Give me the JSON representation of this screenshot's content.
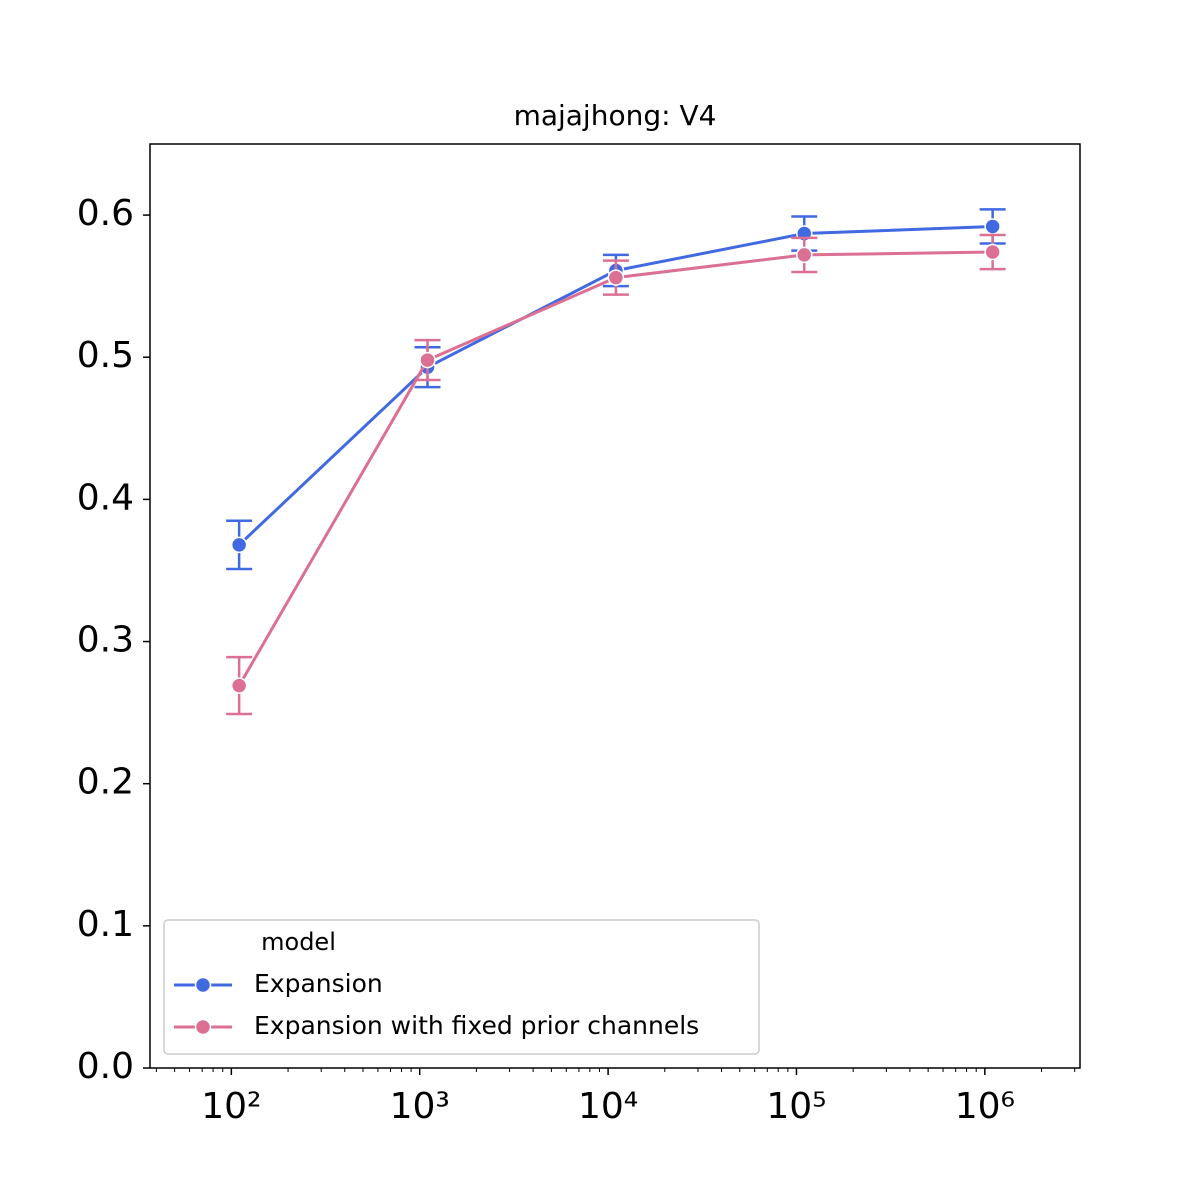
{
  "chart_data": {
    "type": "line",
    "title": "majajhong: V4",
    "x": [
      110,
      1100,
      11000,
      110000,
      1100000
    ],
    "xscale": "log",
    "xlim": [
      37,
      3200000
    ],
    "xticks": [
      {
        "value": 100,
        "label": "10²"
      },
      {
        "value": 1000,
        "label": "10³"
      },
      {
        "value": 10000,
        "label": "10⁴"
      },
      {
        "value": 100000,
        "label": "10⁵"
      },
      {
        "value": 1000000,
        "label": "10⁶"
      }
    ],
    "ylim": [
      0,
      0.65
    ],
    "yticks": [
      {
        "value": 0,
        "label": "0.0"
      },
      0.1,
      0.2,
      0.3,
      0.4,
      0.5,
      0.6
    ],
    "legend_title": "model",
    "legend_position": "lower left",
    "series": [
      {
        "name": "Expansion",
        "color": "#4169e1",
        "values": [
          0.368,
          0.493,
          0.561,
          0.587,
          0.592
        ],
        "errors": [
          0.017,
          0.014,
          0.011,
          0.012,
          0.012
        ]
      },
      {
        "name": "Expansion with fixed prior channels",
        "color": "#db7093",
        "values": [
          0.269,
          0.498,
          0.556,
          0.572,
          0.574
        ],
        "errors": [
          0.02,
          0.014,
          0.012,
          0.012,
          0.012
        ]
      }
    ]
  }
}
